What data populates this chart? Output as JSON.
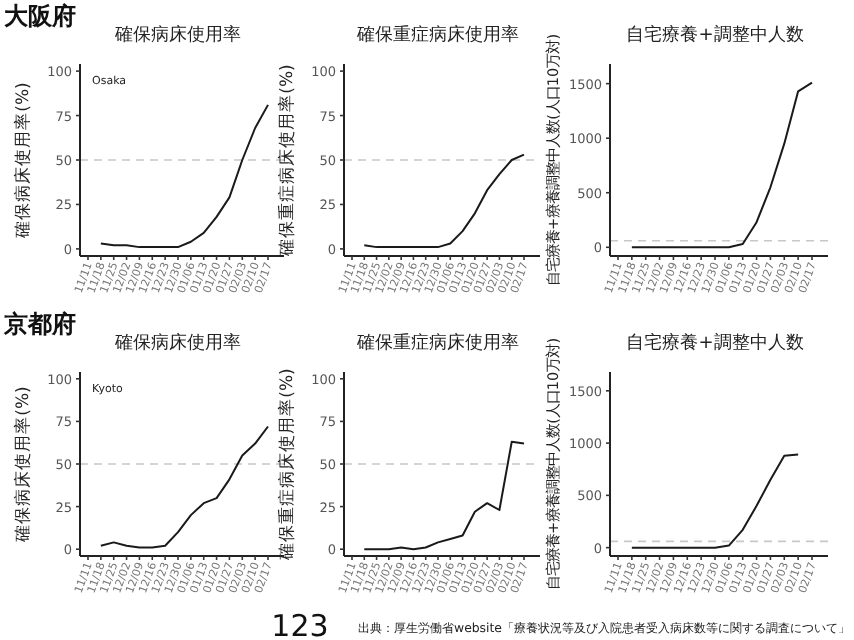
{
  "chart_data": [
    {
      "type": "line",
      "title": "確保病床使用率",
      "ylabel": "確保病床使用率(%)",
      "categories": [
        "11/11",
        "11/18",
        "11/25",
        "12/02",
        "12/09",
        "12/16",
        "12/23",
        "12/30",
        "01/06",
        "01/13",
        "01/20",
        "01/27",
        "02/03",
        "02/10",
        "02/17"
      ],
      "series": [
        {
          "color": "#1a1a1a",
          "values": [
            null,
            3,
            2,
            2,
            1,
            1,
            1,
            1,
            4,
            9,
            18,
            29,
            50,
            68,
            81
          ]
        }
      ],
      "ylim": [
        -4,
        104
      ],
      "yticks": [
        0,
        25,
        50,
        75,
        100
      ],
      "ref_lines": [
        {
          "axis": "y",
          "value": 50,
          "color": "#c8c8c8",
          "line_style": "dashed"
        }
      ],
      "annotations": [
        "大阪府",
        "Osaka"
      ]
    },
    {
      "type": "line",
      "title": "確保重症病床使用率",
      "ylabel": "確保重症病床使用率(%)",
      "categories": [
        "11/11",
        "11/18",
        "11/25",
        "12/02",
        "12/09",
        "12/16",
        "12/23",
        "12/30",
        "01/06",
        "01/13",
        "01/20",
        "01/27",
        "02/03",
        "02/10",
        "02/17"
      ],
      "series": [
        {
          "color": "#1a1a1a",
          "values": [
            null,
            2,
            1,
            1,
            1,
            1,
            1,
            1,
            3,
            10,
            20,
            33,
            42,
            50,
            53
          ]
        }
      ],
      "ylim": [
        -4,
        104
      ],
      "yticks": [
        0,
        25,
        50,
        75,
        100
      ],
      "ref_lines": [
        {
          "axis": "y",
          "value": 50,
          "color": "#c8c8c8",
          "line_style": "dashed"
        }
      ]
    },
    {
      "type": "line",
      "title": "自宅療養+調整中人数",
      "ylabel": "自宅療養+療養調整中人数(人口10万対)",
      "categories": [
        "11/11",
        "11/18",
        "11/25",
        "12/02",
        "12/09",
        "12/16",
        "12/23",
        "12/30",
        "01/06",
        "01/13",
        "01/20",
        "01/27",
        "02/03",
        "02/10",
        "02/17"
      ],
      "series": [
        {
          "color": "#1a1a1a",
          "values": [
            null,
            0,
            0,
            0,
            0,
            0,
            0,
            0,
            0,
            30,
            230,
            550,
            950,
            1430,
            1510
          ]
        }
      ],
      "ylim": [
        -80,
        1680
      ],
      "yticks": [
        0,
        500,
        1000,
        1500
      ],
      "ref_lines": [
        {
          "axis": "y",
          "value": 60,
          "color": "#c8c8c8",
          "line_style": "dashed"
        }
      ]
    },
    {
      "type": "line",
      "title": "確保病床使用率",
      "ylabel": "確保病床使用率(%)",
      "categories": [
        "11/11",
        "11/18",
        "11/25",
        "12/02",
        "12/09",
        "12/16",
        "12/23",
        "12/30",
        "01/06",
        "01/13",
        "01/20",
        "01/27",
        "02/03",
        "02/10",
        "02/17"
      ],
      "series": [
        {
          "color": "#1a1a1a",
          "values": [
            null,
            2,
            4,
            2,
            1,
            1,
            2,
            10,
            20,
            27,
            30,
            41,
            55,
            62,
            72
          ]
        }
      ],
      "ylim": [
        -4,
        104
      ],
      "yticks": [
        0,
        25,
        50,
        75,
        100
      ],
      "ref_lines": [
        {
          "axis": "y",
          "value": 50,
          "color": "#c8c8c8",
          "line_style": "dashed"
        }
      ],
      "annotations": [
        "京都府",
        "Kyoto"
      ]
    },
    {
      "type": "line",
      "title": "確保重症病床使用率",
      "ylabel": "確保重症病床使用率(%)",
      "categories": [
        "11/11",
        "11/18",
        "11/25",
        "12/02",
        "12/09",
        "12/16",
        "12/23",
        "12/30",
        "01/06",
        "01/13",
        "01/20",
        "01/27",
        "02/03",
        "02/10",
        "02/17"
      ],
      "series": [
        {
          "color": "#1a1a1a",
          "values": [
            null,
            0,
            0,
            0,
            1,
            0,
            1,
            4,
            6,
            8,
            22,
            27,
            23,
            63,
            62
          ]
        }
      ],
      "ylim": [
        -4,
        104
      ],
      "yticks": [
        0,
        25,
        50,
        75,
        100
      ],
      "ref_lines": [
        {
          "axis": "y",
          "value": 50,
          "color": "#c8c8c8",
          "line_style": "dashed"
        }
      ],
      "annotations": [
        "123"
      ]
    },
    {
      "type": "line",
      "title": "自宅療養+調整中人数",
      "ylabel": "自宅療養+療養調整中人数(人口10万対)",
      "categories": [
        "11/11",
        "11/18",
        "11/25",
        "12/02",
        "12/09",
        "12/16",
        "12/23",
        "12/30",
        "01/06",
        "01/13",
        "01/20",
        "01/27",
        "02/03",
        "02/10",
        "02/17"
      ],
      "series": [
        {
          "color": "#1a1a1a",
          "values": [
            null,
            0,
            0,
            0,
            0,
            0,
            0,
            0,
            20,
            170,
            400,
            650,
            880,
            890,
            null
          ]
        }
      ],
      "ylim": [
        -80,
        1680
      ],
      "yticks": [
        0,
        500,
        1000,
        1500
      ],
      "ref_lines": [
        {
          "axis": "y",
          "value": 60,
          "color": "#c8c8c8",
          "line_style": "dashed"
        }
      ],
      "annotations": [
        "出典：厚生労働省website「療養状況等及び入院患者受入病床数等に関する調査について」"
      ]
    }
  ]
}
